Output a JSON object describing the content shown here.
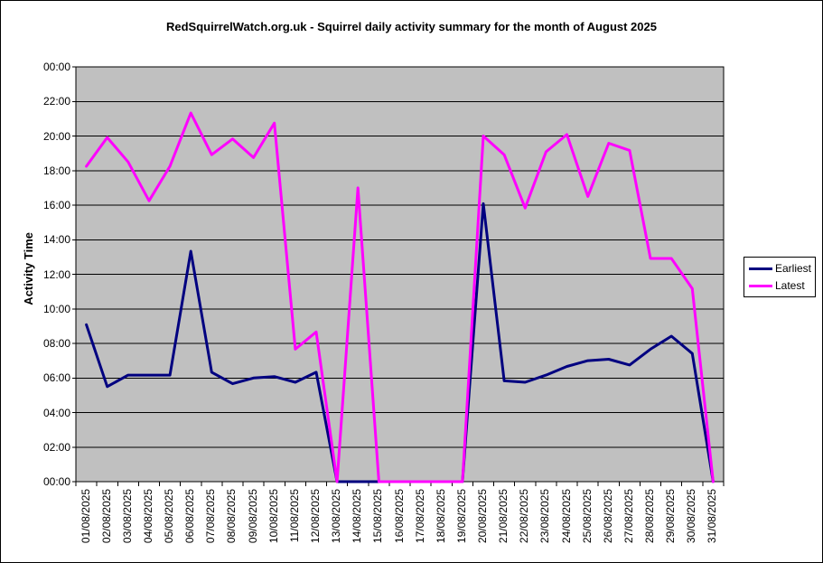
{
  "colors": {
    "page_background": "#FFFFFF",
    "frame_border": "#000000",
    "plot_background": "#C0C0C0",
    "gridline": "#000000",
    "axis": "#000000",
    "earliest_series": "#000080",
    "latest_series": "#FF00FF"
  },
  "y_axis": {
    "tick_labels_top_to_bottom": [
      "00:00",
      "22:00",
      "20:00",
      "18:00",
      "16:00",
      "14:00",
      "12:00",
      "10:00",
      "08:00",
      "06:00",
      "04:00",
      "02:00",
      "00:00"
    ]
  },
  "chart_data": {
    "type": "line",
    "title": "RedSquirrelWatch.org.uk - Squirrel daily activity summary for the month of August 2025",
    "xlabel": "",
    "ylabel": "Activity Time",
    "ylim_hours": [
      0,
      24
    ],
    "y_tick_step_hours": 2,
    "y_tick_format": "HH:MM (24:00 shown as 00:00)",
    "grid": true,
    "legend_position": "right",
    "x_label_rotation_degrees": 90,
    "categories": [
      "01/08/2025",
      "02/08/2025",
      "03/08/2025",
      "04/08/2025",
      "05/08/2025",
      "06/08/2025",
      "07/08/2025",
      "08/08/2025",
      "09/08/2025",
      "10/08/2025",
      "11/08/2025",
      "12/08/2025",
      "13/08/2025",
      "14/08/2025",
      "15/08/2025",
      "16/08/2025",
      "17/08/2025",
      "18/08/2025",
      "19/08/2025",
      "20/08/2025",
      "21/08/2025",
      "22/08/2025",
      "23/08/2025",
      "24/08/2025",
      "25/08/2025",
      "26/08/2025",
      "27/08/2025",
      "28/08/2025",
      "29/08/2025",
      "30/08/2025",
      "31/08/2025"
    ],
    "series": [
      {
        "name": "Earliest",
        "color": "#000080",
        "values": [
          "09:05",
          "05:30",
          "06:10",
          "06:10",
          "06:10",
          "13:20",
          "06:20",
          "05:40",
          "06:00",
          "06:05",
          "05:45",
          "06:20",
          "00:00",
          "00:00",
          "00:00",
          "00:00",
          "00:00",
          "00:00",
          "00:00",
          "16:05",
          "05:50",
          "05:45",
          "06:10",
          "06:40",
          "07:00",
          "07:05",
          "06:45",
          "07:40",
          "08:25",
          "07:25",
          "00:00"
        ]
      },
      {
        "name": "Latest",
        "color": "#FF00FF",
        "values": [
          "18:15",
          "19:55",
          "18:30",
          "16:15",
          "18:15",
          "21:20",
          "18:55",
          "19:50",
          "18:45",
          "20:45",
          "07:40",
          "08:40",
          "00:00",
          "17:00",
          "00:00",
          "00:00",
          "00:00",
          "00:00",
          "00:00",
          "20:00",
          "18:55",
          "15:50",
          "19:05",
          "20:05",
          "16:30",
          "19:35",
          "19:10",
          "12:55",
          "12:55",
          "11:10",
          "00:00"
        ]
      }
    ]
  }
}
